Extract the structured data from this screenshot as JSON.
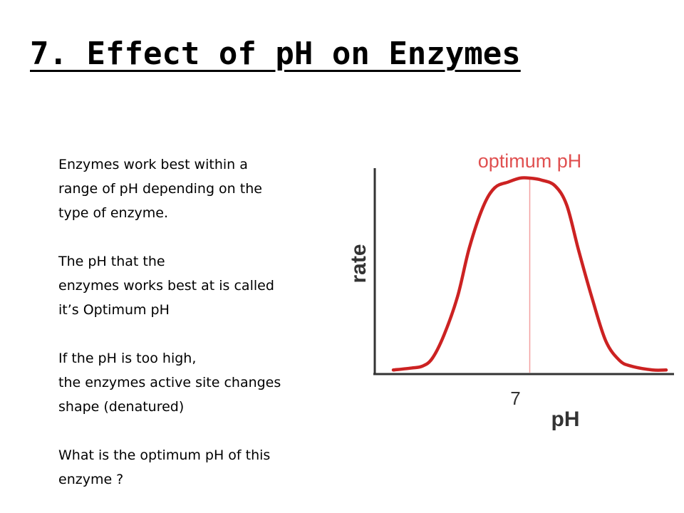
{
  "slide": {
    "title": "7. Effect of pH on Enzymes",
    "paragraphs": [
      {
        "lines": [
          "Enzymes work best within a",
          "range of pH depending on the",
          "type of enzyme."
        ]
      },
      {
        "lines": [
          "The pH that the",
          "enzymes works best at is called",
          "it’s Optimum pH"
        ]
      },
      {
        "lines": [
          "If the pH is too high,",
          "the enzymes active site changes",
          "shape (denatured)"
        ]
      },
      {
        "lines": [
          "What is the optimum pH of this",
          "enzyme ?"
        ]
      }
    ]
  },
  "chart_data": {
    "type": "line",
    "xlabel": "pH",
    "ylabel": "rate",
    "x_tick_labels": [
      "7"
    ],
    "annotation": "optimum pH",
    "optimum_x": 7,
    "xlim": [
      0,
      14
    ],
    "ylim": [
      0,
      1
    ],
    "x": [
      0.0,
      0.93,
      1.5,
      2.0,
      2.6,
      3.3,
      3.9,
      4.6,
      5.2,
      5.9,
      6.5,
      7.0,
      7.6,
      8.3,
      8.9,
      9.5,
      10.2,
      10.9,
      11.6,
      12.2,
      13.3,
      14.0
    ],
    "series": [
      {
        "values": [
          0.01,
          0.02,
          0.03,
          0.07,
          0.19,
          0.39,
          0.64,
          0.85,
          0.95,
          0.98,
          1.0,
          1.0,
          0.99,
          0.96,
          0.86,
          0.63,
          0.38,
          0.16,
          0.06,
          0.03,
          0.01,
          0.01
        ]
      }
    ],
    "colors": {
      "curve": "#cc2222",
      "optimum_line": "#f2a0a0",
      "axes": "#333333",
      "annotation": "#e05050"
    }
  }
}
